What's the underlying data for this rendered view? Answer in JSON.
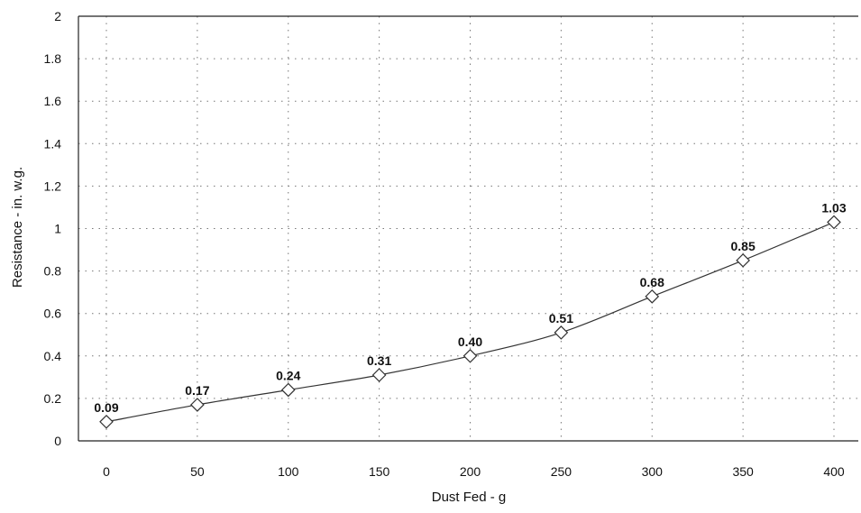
{
  "chart_data": {
    "type": "line",
    "title": "",
    "xlabel": "Dust Fed - g",
    "ylabel": "Resistance - in. w.g.",
    "xlim": [
      0,
      400
    ],
    "ylim": [
      0,
      2
    ],
    "x_ticks": [
      "0",
      "50",
      "100",
      "150",
      "200",
      "250",
      "300",
      "350",
      "400"
    ],
    "y_ticks": [
      "0",
      "0.2",
      "0.4",
      "0.6",
      "0.8",
      "1",
      "1.2",
      "1.4",
      "1.6",
      "1.8",
      "2"
    ],
    "grid": "dotted-both",
    "legend": "none",
    "series": [
      {
        "marker": "diamond",
        "x": [
          0,
          50,
          100,
          150,
          200,
          250,
          300,
          350,
          400
        ],
        "y": [
          0.09,
          0.17,
          0.24,
          0.31,
          0.4,
          0.51,
          0.68,
          0.85,
          1.03
        ],
        "labels": [
          "0.09",
          "0.17",
          "0.24",
          "0.31",
          "0.40",
          "0.51",
          "0.68",
          "0.85",
          "1.03"
        ]
      }
    ]
  }
}
